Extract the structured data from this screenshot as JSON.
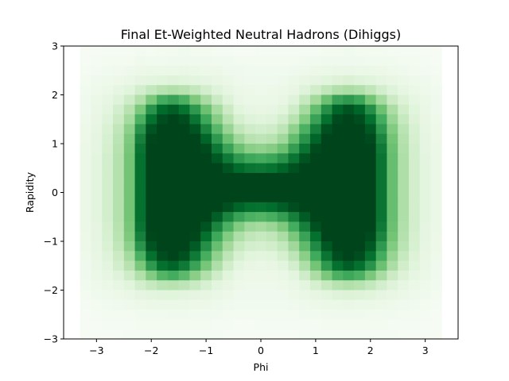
{
  "chart_data": {
    "type": "heatmap",
    "title": "Final Et-Weighted Neutral Hadrons (Dihiggs)",
    "xlabel": "Phi",
    "ylabel": "Rapidity",
    "xlim": [
      -3.6,
      3.6
    ],
    "ylim": [
      -3,
      3
    ],
    "xticks": [
      -3,
      -2,
      -1,
      0,
      1,
      2,
      3
    ],
    "xtick_labels": [
      "−3",
      "−2",
      "−1",
      "0",
      "1",
      "2",
      "3"
    ],
    "yticks": [
      -3,
      -2,
      -1,
      0,
      1,
      2,
      3
    ],
    "ytick_labels": [
      "−3",
      "−2",
      "−1",
      "0",
      "1",
      "2",
      "3"
    ],
    "colormap": "Greens",
    "colors": {
      "low": "#f7fcf5",
      "high": "#00441b"
    },
    "grid": false,
    "x_bin_edges": [
      -3.3,
      -3.1,
      -2.9,
      -2.7,
      -2.5,
      -2.3,
      -2.1,
      -1.9,
      -1.7,
      -1.5,
      -1.3,
      -1.1,
      -0.9,
      -0.7,
      -0.5,
      -0.3,
      -0.1,
      0.1,
      0.3,
      0.5,
      0.7,
      0.9,
      1.1,
      1.3,
      1.5,
      1.7,
      1.9,
      2.1,
      2.3,
      2.5,
      2.7,
      2.9,
      3.1,
      3.3
    ],
    "y_bin_edges": [
      -3.0,
      -2.8,
      -2.6,
      -2.4,
      -2.2,
      -2.0,
      -1.8,
      -1.6,
      -1.4,
      -1.2,
      -1.0,
      -0.8,
      -0.6,
      -0.4,
      -0.2,
      0.0,
      0.2,
      0.4,
      0.6,
      0.8,
      1.0,
      1.2,
      1.4,
      1.6,
      1.8,
      2.0,
      2.2,
      2.4,
      2.6,
      2.8,
      3.0
    ],
    "intensity_rows_top_to_bottom": [
      [
        0.01,
        0.01,
        0.02,
        0.02,
        0.02,
        0.03,
        0.02,
        0.03,
        0.03,
        0.04,
        0.03,
        0.03,
        0.02,
        0.02,
        0.01,
        0.01,
        0.02,
        0.02,
        0.02,
        0.02,
        0.02,
        0.02,
        0.03,
        0.03,
        0.04,
        0.03,
        0.03,
        0.03,
        0.02,
        0.02,
        0.02,
        0.01,
        0.01
      ],
      [
        0.01,
        0.02,
        0.03,
        0.03,
        0.03,
        0.05,
        0.04,
        0.04,
        0.05,
        0.05,
        0.05,
        0.05,
        0.04,
        0.04,
        0.03,
        0.03,
        0.03,
        0.03,
        0.03,
        0.03,
        0.04,
        0.04,
        0.05,
        0.05,
        0.05,
        0.05,
        0.04,
        0.04,
        0.04,
        0.03,
        0.03,
        0.02,
        0.01
      ],
      [
        0.02,
        0.03,
        0.04,
        0.05,
        0.06,
        0.07,
        0.08,
        0.08,
        0.08,
        0.09,
        0.08,
        0.07,
        0.07,
        0.05,
        0.05,
        0.04,
        0.04,
        0.04,
        0.04,
        0.05,
        0.06,
        0.07,
        0.08,
        0.09,
        0.09,
        0.08,
        0.08,
        0.07,
        0.06,
        0.05,
        0.04,
        0.03,
        0.02
      ],
      [
        0.03,
        0.05,
        0.06,
        0.07,
        0.09,
        0.12,
        0.13,
        0.14,
        0.15,
        0.14,
        0.13,
        0.12,
        0.1,
        0.08,
        0.06,
        0.05,
        0.05,
        0.05,
        0.06,
        0.08,
        0.1,
        0.12,
        0.14,
        0.16,
        0.17,
        0.15,
        0.14,
        0.12,
        0.1,
        0.08,
        0.06,
        0.05,
        0.03
      ],
      [
        0.04,
        0.06,
        0.08,
        0.11,
        0.14,
        0.2,
        0.26,
        0.3,
        0.32,
        0.3,
        0.26,
        0.2,
        0.15,
        0.11,
        0.08,
        0.07,
        0.06,
        0.07,
        0.08,
        0.1,
        0.15,
        0.21,
        0.27,
        0.32,
        0.34,
        0.32,
        0.27,
        0.2,
        0.15,
        0.11,
        0.08,
        0.06,
        0.04
      ],
      [
        0.05,
        0.08,
        0.11,
        0.15,
        0.22,
        0.32,
        0.48,
        0.62,
        0.66,
        0.6,
        0.47,
        0.35,
        0.24,
        0.16,
        0.1,
        0.08,
        0.08,
        0.08,
        0.1,
        0.15,
        0.25,
        0.37,
        0.52,
        0.66,
        0.7,
        0.65,
        0.5,
        0.36,
        0.23,
        0.16,
        0.11,
        0.08,
        0.05
      ],
      [
        0.05,
        0.09,
        0.13,
        0.2,
        0.3,
        0.48,
        0.72,
        0.88,
        0.92,
        0.85,
        0.7,
        0.52,
        0.36,
        0.23,
        0.14,
        0.11,
        0.1,
        0.11,
        0.14,
        0.22,
        0.36,
        0.54,
        0.74,
        0.9,
        0.95,
        0.9,
        0.74,
        0.52,
        0.34,
        0.21,
        0.14,
        0.09,
        0.05
      ],
      [
        0.06,
        0.1,
        0.15,
        0.23,
        0.36,
        0.6,
        0.86,
        0.97,
        1.0,
        0.97,
        0.84,
        0.64,
        0.45,
        0.3,
        0.19,
        0.15,
        0.14,
        0.15,
        0.2,
        0.3,
        0.46,
        0.66,
        0.86,
        0.98,
        1.0,
        0.97,
        0.86,
        0.62,
        0.4,
        0.25,
        0.16,
        0.1,
        0.06
      ],
      [
        0.07,
        0.11,
        0.17,
        0.27,
        0.43,
        0.72,
        0.95,
        1.0,
        1.0,
        1.0,
        0.95,
        0.78,
        0.57,
        0.4,
        0.27,
        0.22,
        0.2,
        0.22,
        0.28,
        0.42,
        0.6,
        0.8,
        0.96,
        1.0,
        1.0,
        1.0,
        0.94,
        0.7,
        0.46,
        0.29,
        0.18,
        0.11,
        0.07
      ],
      [
        0.07,
        0.12,
        0.18,
        0.29,
        0.47,
        0.8,
        0.99,
        1.0,
        1.0,
        1.0,
        1.0,
        0.9,
        0.7,
        0.52,
        0.38,
        0.3,
        0.28,
        0.3,
        0.38,
        0.54,
        0.72,
        0.9,
        1.0,
        1.0,
        1.0,
        1.0,
        0.98,
        0.78,
        0.5,
        0.31,
        0.19,
        0.12,
        0.07
      ],
      [
        0.08,
        0.12,
        0.19,
        0.3,
        0.49,
        0.84,
        1.0,
        1.0,
        1.0,
        1.0,
        1.0,
        0.98,
        0.83,
        0.66,
        0.52,
        0.44,
        0.42,
        0.45,
        0.52,
        0.68,
        0.84,
        0.98,
        1.0,
        1.0,
        1.0,
        1.0,
        1.0,
        0.82,
        0.52,
        0.32,
        0.2,
        0.12,
        0.08
      ],
      [
        0.08,
        0.13,
        0.2,
        0.31,
        0.5,
        0.86,
        1.0,
        1.0,
        1.0,
        1.0,
        1.0,
        1.0,
        0.94,
        0.82,
        0.7,
        0.64,
        0.62,
        0.65,
        0.72,
        0.84,
        0.95,
        1.0,
        1.0,
        1.0,
        1.0,
        1.0,
        1.0,
        0.84,
        0.53,
        0.33,
        0.2,
        0.13,
        0.08
      ],
      [
        0.08,
        0.13,
        0.2,
        0.31,
        0.5,
        0.86,
        1.0,
        1.0,
        1.0,
        1.0,
        1.0,
        1.0,
        1.0,
        0.95,
        0.88,
        0.84,
        0.83,
        0.85,
        0.9,
        0.96,
        1.0,
        1.0,
        1.0,
        1.0,
        1.0,
        1.0,
        1.0,
        0.84,
        0.53,
        0.33,
        0.2,
        0.13,
        0.08
      ],
      [
        0.08,
        0.13,
        0.2,
        0.31,
        0.5,
        0.86,
        1.0,
        1.0,
        1.0,
        1.0,
        1.0,
        1.0,
        1.0,
        1.0,
        1.0,
        1.0,
        1.0,
        1.0,
        1.0,
        1.0,
        1.0,
        1.0,
        1.0,
        1.0,
        1.0,
        1.0,
        1.0,
        0.84,
        0.53,
        0.33,
        0.2,
        0.13,
        0.08
      ],
      [
        0.08,
        0.13,
        0.2,
        0.31,
        0.5,
        0.86,
        1.0,
        1.0,
        1.0,
        1.0,
        1.0,
        1.0,
        1.0,
        1.0,
        1.0,
        1.0,
        1.0,
        1.0,
        1.0,
        1.0,
        1.0,
        1.0,
        1.0,
        1.0,
        1.0,
        1.0,
        1.0,
        0.84,
        0.53,
        0.33,
        0.2,
        0.13,
        0.08
      ],
      [
        0.08,
        0.13,
        0.2,
        0.31,
        0.5,
        0.86,
        1.0,
        1.0,
        1.0,
        1.0,
        1.0,
        1.0,
        1.0,
        1.0,
        1.0,
        1.0,
        1.0,
        1.0,
        1.0,
        1.0,
        1.0,
        1.0,
        1.0,
        1.0,
        1.0,
        1.0,
        1.0,
        0.84,
        0.53,
        0.33,
        0.2,
        0.13,
        0.08
      ],
      [
        0.08,
        0.13,
        0.2,
        0.31,
        0.5,
        0.86,
        1.0,
        1.0,
        1.0,
        1.0,
        1.0,
        1.0,
        1.0,
        0.96,
        0.9,
        0.86,
        0.85,
        0.87,
        0.92,
        0.97,
        1.0,
        1.0,
        1.0,
        1.0,
        1.0,
        1.0,
        1.0,
        0.84,
        0.53,
        0.33,
        0.2,
        0.13,
        0.08
      ],
      [
        0.08,
        0.13,
        0.2,
        0.31,
        0.5,
        0.86,
        1.0,
        1.0,
        1.0,
        1.0,
        1.0,
        1.0,
        0.92,
        0.78,
        0.66,
        0.6,
        0.58,
        0.61,
        0.68,
        0.8,
        0.93,
        1.0,
        1.0,
        1.0,
        1.0,
        1.0,
        1.0,
        0.84,
        0.53,
        0.33,
        0.2,
        0.13,
        0.08
      ],
      [
        0.08,
        0.12,
        0.19,
        0.3,
        0.49,
        0.84,
        1.0,
        1.0,
        1.0,
        1.0,
        1.0,
        0.95,
        0.78,
        0.6,
        0.46,
        0.38,
        0.36,
        0.39,
        0.47,
        0.62,
        0.8,
        0.96,
        1.0,
        1.0,
        1.0,
        1.0,
        1.0,
        0.82,
        0.52,
        0.32,
        0.2,
        0.12,
        0.08
      ],
      [
        0.07,
        0.12,
        0.18,
        0.29,
        0.47,
        0.8,
        0.99,
        1.0,
        1.0,
        1.0,
        0.99,
        0.86,
        0.64,
        0.46,
        0.33,
        0.27,
        0.25,
        0.27,
        0.34,
        0.48,
        0.66,
        0.86,
        1.0,
        1.0,
        1.0,
        1.0,
        0.98,
        0.78,
        0.5,
        0.31,
        0.19,
        0.12,
        0.07
      ],
      [
        0.07,
        0.11,
        0.17,
        0.27,
        0.43,
        0.72,
        0.95,
        1.0,
        1.0,
        1.0,
        0.93,
        0.74,
        0.53,
        0.37,
        0.25,
        0.2,
        0.19,
        0.21,
        0.26,
        0.38,
        0.55,
        0.76,
        0.94,
        1.0,
        1.0,
        1.0,
        0.94,
        0.7,
        0.46,
        0.29,
        0.18,
        0.11,
        0.07
      ],
      [
        0.06,
        0.1,
        0.15,
        0.23,
        0.36,
        0.6,
        0.86,
        0.97,
        1.0,
        0.96,
        0.82,
        0.61,
        0.42,
        0.28,
        0.18,
        0.14,
        0.13,
        0.14,
        0.19,
        0.28,
        0.44,
        0.63,
        0.84,
        0.97,
        1.0,
        0.97,
        0.86,
        0.62,
        0.4,
        0.25,
        0.16,
        0.1,
        0.06
      ],
      [
        0.05,
        0.09,
        0.13,
        0.2,
        0.3,
        0.48,
        0.7,
        0.86,
        0.9,
        0.82,
        0.66,
        0.49,
        0.33,
        0.21,
        0.13,
        0.1,
        0.09,
        0.1,
        0.13,
        0.2,
        0.33,
        0.5,
        0.7,
        0.86,
        0.92,
        0.86,
        0.72,
        0.52,
        0.34,
        0.21,
        0.14,
        0.09,
        0.05
      ],
      [
        0.05,
        0.08,
        0.11,
        0.15,
        0.22,
        0.32,
        0.46,
        0.58,
        0.62,
        0.56,
        0.44,
        0.32,
        0.22,
        0.14,
        0.09,
        0.07,
        0.07,
        0.07,
        0.09,
        0.13,
        0.22,
        0.34,
        0.48,
        0.6,
        0.64,
        0.6,
        0.48,
        0.35,
        0.23,
        0.16,
        0.11,
        0.08,
        0.05
      ],
      [
        0.04,
        0.06,
        0.08,
        0.11,
        0.14,
        0.2,
        0.25,
        0.29,
        0.3,
        0.28,
        0.24,
        0.18,
        0.13,
        0.1,
        0.07,
        0.06,
        0.06,
        0.06,
        0.07,
        0.09,
        0.13,
        0.19,
        0.25,
        0.3,
        0.32,
        0.3,
        0.26,
        0.2,
        0.15,
        0.11,
        0.08,
        0.06,
        0.04
      ],
      [
        0.03,
        0.05,
        0.06,
        0.07,
        0.09,
        0.12,
        0.13,
        0.14,
        0.14,
        0.13,
        0.12,
        0.11,
        0.09,
        0.07,
        0.05,
        0.05,
        0.05,
        0.05,
        0.05,
        0.07,
        0.09,
        0.11,
        0.13,
        0.15,
        0.16,
        0.15,
        0.14,
        0.12,
        0.1,
        0.08,
        0.06,
        0.05,
        0.03
      ],
      [
        0.02,
        0.03,
        0.04,
        0.05,
        0.06,
        0.07,
        0.08,
        0.08,
        0.08,
        0.08,
        0.07,
        0.07,
        0.06,
        0.05,
        0.04,
        0.04,
        0.04,
        0.04,
        0.04,
        0.05,
        0.06,
        0.07,
        0.08,
        0.08,
        0.09,
        0.08,
        0.08,
        0.07,
        0.06,
        0.05,
        0.04,
        0.03,
        0.02
      ],
      [
        0.01,
        0.02,
        0.03,
        0.03,
        0.03,
        0.04,
        0.04,
        0.04,
        0.05,
        0.05,
        0.04,
        0.04,
        0.04,
        0.03,
        0.03,
        0.03,
        0.03,
        0.03,
        0.03,
        0.03,
        0.04,
        0.04,
        0.05,
        0.05,
        0.05,
        0.05,
        0.04,
        0.04,
        0.04,
        0.03,
        0.03,
        0.02,
        0.01
      ],
      [
        0.01,
        0.01,
        0.02,
        0.02,
        0.02,
        0.03,
        0.03,
        0.03,
        0.03,
        0.03,
        0.03,
        0.03,
        0.02,
        0.02,
        0.01,
        0.01,
        0.02,
        0.02,
        0.02,
        0.02,
        0.02,
        0.02,
        0.03,
        0.03,
        0.03,
        0.03,
        0.03,
        0.03,
        0.02,
        0.02,
        0.02,
        0.01,
        0.01
      ],
      [
        0.01,
        0.01,
        0.01,
        0.01,
        0.02,
        0.02,
        0.02,
        0.02,
        0.02,
        0.02,
        0.02,
        0.02,
        0.02,
        0.01,
        0.01,
        0.01,
        0.01,
        0.01,
        0.01,
        0.01,
        0.02,
        0.02,
        0.02,
        0.02,
        0.02,
        0.02,
        0.02,
        0.02,
        0.02,
        0.01,
        0.01,
        0.01,
        0.01
      ]
    ]
  }
}
